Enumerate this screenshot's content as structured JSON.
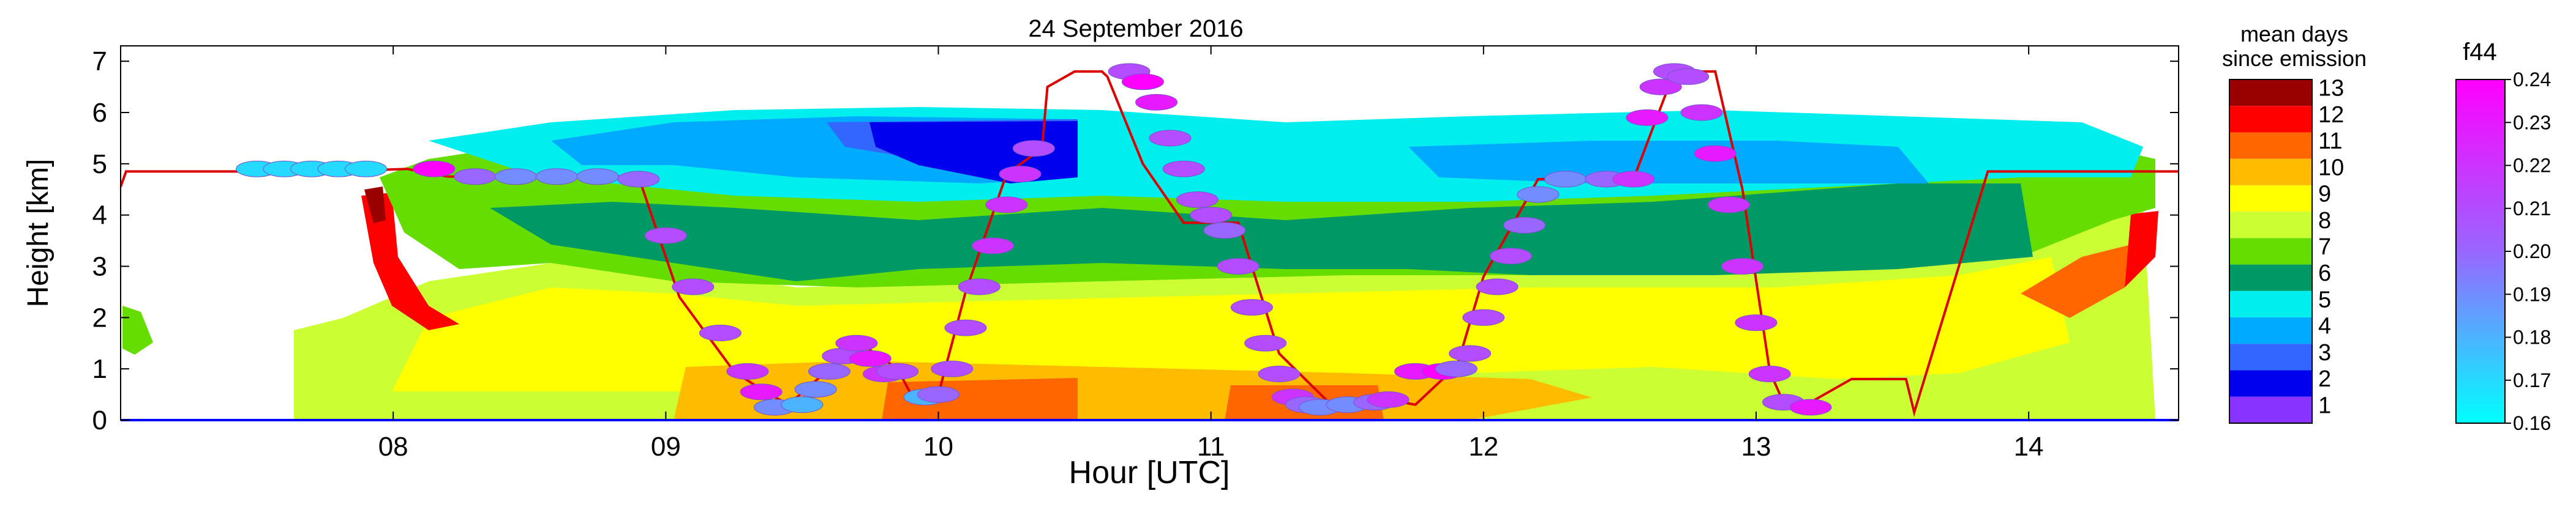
{
  "chart_data": {
    "type": "heatmap",
    "title": "24 September 2016",
    "xlabel": "Hour [UTC]",
    "ylabel": "Height [km]",
    "xlim": [
      7.0,
      14.55
    ],
    "ylim": [
      0,
      7.3
    ],
    "x_ticks": [
      {
        "value": 8,
        "label": "08"
      },
      {
        "value": 9,
        "label": "09"
      },
      {
        "value": 10,
        "label": "10"
      },
      {
        "value": 11,
        "label": "11"
      },
      {
        "value": 12,
        "label": "12"
      },
      {
        "value": 13,
        "label": "13"
      },
      {
        "value": 14,
        "label": "14"
      }
    ],
    "y_ticks": [
      0,
      1,
      2,
      3,
      4,
      5,
      6,
      7
    ],
    "grid": false,
    "colorbar_age": {
      "title_line1": "mean days",
      "title_line2": "since emission",
      "levels": [
        13,
        12,
        11,
        10,
        9,
        8,
        7,
        6,
        5,
        4,
        3,
        2,
        1
      ],
      "colors": [
        "#990000",
        "#ff0000",
        "#ff6600",
        "#ffbb00",
        "#ffff00",
        "#ccff33",
        "#66dd00",
        "#009966",
        "#00eeee",
        "#00aaff",
        "#3366ff",
        "#0000ee",
        "#8833ff"
      ]
    },
    "colorbar_f44": {
      "title": "f44",
      "ticks": [
        "0.24",
        "0.23",
        "0.22",
        "0.21",
        "0.20",
        "0.19",
        "0.18",
        "0.17",
        "0.16"
      ],
      "range": [
        0.16,
        0.24
      ],
      "color_low": "#00ffff",
      "color_mid": "#9966ff",
      "color_high": "#ff00ff"
    },
    "flight_track": {
      "name": "flight altitude",
      "color": "#dd0000",
      "x": [
        7.0,
        7.02,
        7.8,
        8.05,
        8.2,
        8.5,
        8.7,
        8.9,
        9.05,
        9.25,
        9.35,
        9.45,
        9.6,
        9.7,
        9.85,
        9.9,
        10.0,
        10.1,
        10.25,
        10.38,
        10.4,
        10.5,
        10.6,
        10.62,
        10.75,
        10.9,
        11.1,
        11.25,
        11.45,
        11.6,
        11.7,
        11.75,
        11.85,
        11.9,
        12.0,
        12.2,
        12.4,
        12.55,
        12.7,
        12.85,
        12.95,
        13.05,
        13.1,
        13.2,
        13.35,
        13.55,
        13.58,
        13.85,
        14.0,
        14.3,
        14.55
      ],
      "y": [
        4.55,
        4.85,
        4.85,
        4.9,
        4.75,
        4.75,
        4.75,
        4.75,
        2.4,
        0.95,
        0.6,
        0.3,
        1.0,
        1.55,
        1.0,
        0.5,
        0.5,
        2.5,
        4.8,
        5.3,
        6.5,
        6.8,
        6.8,
        6.7,
        5.0,
        3.85,
        3.85,
        1.3,
        0.25,
        0.25,
        0.35,
        0.3,
        0.8,
        1.0,
        2.8,
        4.7,
        4.7,
        4.7,
        6.8,
        6.8,
        4.5,
        0.95,
        0.35,
        0.35,
        0.8,
        0.8,
        0.15,
        4.85,
        4.85,
        4.85,
        4.85
      ]
    },
    "f44_markers": {
      "x": [
        7.5,
        7.6,
        7.7,
        7.8,
        7.9,
        8.15,
        8.3,
        8.45,
        8.6,
        8.75,
        8.9,
        9.0,
        9.1,
        9.2,
        9.3,
        9.35,
        9.4,
        9.5,
        9.55,
        9.6,
        9.65,
        9.7,
        9.75,
        9.8,
        9.85,
        9.95,
        10.0,
        10.05,
        10.1,
        10.15,
        10.2,
        10.25,
        10.3,
        10.35,
        10.7,
        10.75,
        10.8,
        10.85,
        10.9,
        10.95,
        11.0,
        11.05,
        11.1,
        11.15,
        11.2,
        11.25,
        11.3,
        11.35,
        11.4,
        11.5,
        11.6,
        11.65,
        11.75,
        11.85,
        11.9,
        11.95,
        12.0,
        12.05,
        12.1,
        12.15,
        12.2,
        12.3,
        12.45,
        12.55,
        12.6,
        12.65,
        12.7,
        12.75,
        12.8,
        12.85,
        12.9,
        12.95,
        13.0,
        13.05,
        13.1,
        13.2
      ],
      "y": [
        4.9,
        4.9,
        4.9,
        4.9,
        4.9,
        4.9,
        4.75,
        4.75,
        4.75,
        4.75,
        4.7,
        3.6,
        2.6,
        1.7,
        0.95,
        0.55,
        0.25,
        0.3,
        0.6,
        0.95,
        1.25,
        1.5,
        1.2,
        0.9,
        0.95,
        0.45,
        0.5,
        1.0,
        1.8,
        2.6,
        3.4,
        4.2,
        4.8,
        5.3,
        6.8,
        6.6,
        6.2,
        5.5,
        4.9,
        4.3,
        4.0,
        3.7,
        3.0,
        2.2,
        1.5,
        0.9,
        0.45,
        0.3,
        0.25,
        0.3,
        0.35,
        0.4,
        0.95,
        0.95,
        1.0,
        1.3,
        2.0,
        2.6,
        3.2,
        3.8,
        4.4,
        4.7,
        4.7,
        4.7,
        5.9,
        6.5,
        6.8,
        6.7,
        6.0,
        5.2,
        4.2,
        3.0,
        1.9,
        0.9,
        0.35,
        0.25
      ],
      "f44": [
        0.17,
        0.17,
        0.17,
        0.17,
        0.17,
        0.24,
        0.2,
        0.19,
        0.19,
        0.19,
        0.2,
        0.21,
        0.21,
        0.21,
        0.22,
        0.23,
        0.19,
        0.18,
        0.19,
        0.2,
        0.21,
        0.22,
        0.23,
        0.22,
        0.21,
        0.18,
        0.2,
        0.21,
        0.21,
        0.21,
        0.22,
        0.22,
        0.22,
        0.21,
        0.21,
        0.24,
        0.23,
        0.21,
        0.21,
        0.21,
        0.21,
        0.2,
        0.21,
        0.21,
        0.21,
        0.21,
        0.22,
        0.2,
        0.19,
        0.19,
        0.2,
        0.22,
        0.23,
        0.24,
        0.2,
        0.21,
        0.21,
        0.21,
        0.21,
        0.2,
        0.19,
        0.19,
        0.2,
        0.22,
        0.23,
        0.22,
        0.21,
        0.21,
        0.22,
        0.23,
        0.22,
        0.22,
        0.22,
        0.22,
        0.21,
        0.23
      ]
    }
  }
}
